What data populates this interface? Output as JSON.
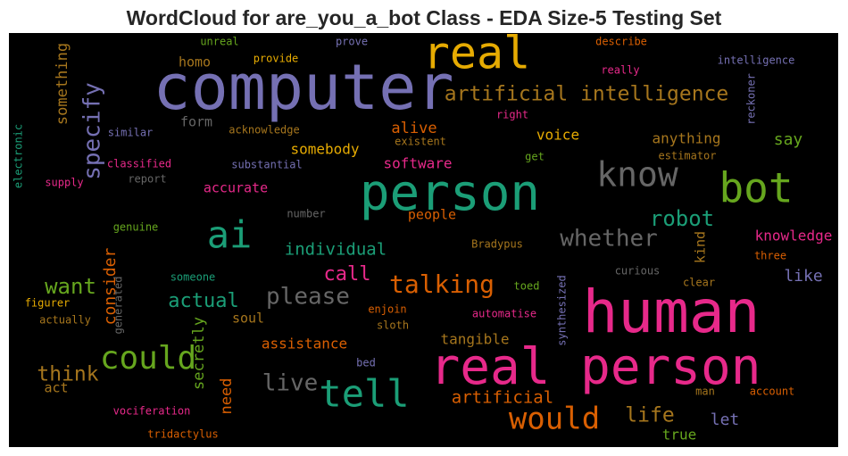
{
  "page": {
    "title": "WordCloud for are_you_a_bot Class - EDA Size-5 Testing Set"
  },
  "chart_data": {
    "type": "wordcloud",
    "title": "WordCloud for are_you_a_bot Class - EDA Size-5 Testing Set",
    "background": "#000000",
    "palette": [
      "#1b9e77",
      "#d95f02",
      "#7570b3",
      "#e7298a",
      "#66a61e",
      "#e6ab02",
      "#a6761d",
      "#666666"
    ],
    "words": [
      {
        "text": "computer",
        "weight": 1.0,
        "color": "#7570b3"
      },
      {
        "text": "human",
        "weight": 0.99,
        "color": "#e7298a"
      },
      {
        "text": "real person",
        "weight": 0.9,
        "color": "#e7298a"
      },
      {
        "text": "person",
        "weight": 0.85,
        "color": "#1b9e77"
      },
      {
        "text": "real",
        "weight": 0.78,
        "color": "#e6ab02"
      },
      {
        "text": "bot",
        "weight": 0.76,
        "color": "#66a61e"
      },
      {
        "text": "tell",
        "weight": 0.66,
        "color": "#1b9e77"
      },
      {
        "text": "ai",
        "weight": 0.63,
        "color": "#1b9e77"
      },
      {
        "text": "know",
        "weight": 0.6,
        "color": "#666666"
      },
      {
        "text": "could",
        "weight": 0.54,
        "color": "#66a61e"
      },
      {
        "text": "would",
        "weight": 0.52,
        "color": "#d95f02"
      },
      {
        "text": "talking",
        "weight": 0.44,
        "color": "#d95f02"
      },
      {
        "text": "artificial intelligence",
        "weight": 0.36,
        "color": "#a6761d"
      },
      {
        "text": "specify",
        "weight": 0.4,
        "color": "#7570b3"
      },
      {
        "text": "whether",
        "weight": 0.38,
        "color": "#666666"
      },
      {
        "text": "please",
        "weight": 0.36,
        "color": "#666666"
      },
      {
        "text": "live",
        "weight": 0.36,
        "color": "#666666"
      },
      {
        "text": "robot",
        "weight": 0.33,
        "color": "#1b9e77"
      },
      {
        "text": "want",
        "weight": 0.34,
        "color": "#66a61e"
      },
      {
        "text": "think",
        "weight": 0.32,
        "color": "#a6761d"
      },
      {
        "text": "life",
        "weight": 0.31,
        "color": "#a6761d"
      },
      {
        "text": "actual",
        "weight": 0.3,
        "color": "#1b9e77"
      },
      {
        "text": "call",
        "weight": 0.29,
        "color": "#e7298a"
      },
      {
        "text": "individual",
        "weight": 0.28,
        "color": "#1b9e77"
      },
      {
        "text": "artificial",
        "weight": 0.27,
        "color": "#d95f02"
      },
      {
        "text": "say",
        "weight": 0.26,
        "color": "#66a61e"
      },
      {
        "text": "let",
        "weight": 0.26,
        "color": "#7570b3"
      },
      {
        "text": "like",
        "weight": 0.26,
        "color": "#7570b3"
      },
      {
        "text": "consider",
        "weight": 0.26,
        "color": "#d95f02"
      },
      {
        "text": "something",
        "weight": 0.25,
        "color": "#a6761d"
      },
      {
        "text": "secretly",
        "weight": 0.26,
        "color": "#66a61e"
      },
      {
        "text": "alive",
        "weight": 0.25,
        "color": "#d95f02"
      },
      {
        "text": "need",
        "weight": 0.25,
        "color": "#d95f02"
      },
      {
        "text": "assistance",
        "weight": 0.24,
        "color": "#d95f02"
      },
      {
        "text": "tangible",
        "weight": 0.24,
        "color": "#a6761d"
      },
      {
        "text": "voice",
        "weight": 0.24,
        "color": "#e6ab02"
      },
      {
        "text": "anything",
        "weight": 0.24,
        "color": "#a6761d"
      },
      {
        "text": "knowledge",
        "weight": 0.24,
        "color": "#e7298a"
      },
      {
        "text": "true",
        "weight": 0.24,
        "color": "#66a61e"
      },
      {
        "text": "somebody",
        "weight": 0.23,
        "color": "#e6ab02"
      },
      {
        "text": "software",
        "weight": 0.23,
        "color": "#e7298a"
      },
      {
        "text": "accurate",
        "weight": 0.23,
        "color": "#e7298a"
      },
      {
        "text": "people",
        "weight": 0.23,
        "color": "#d95f02"
      },
      {
        "text": "kind",
        "weight": 0.22,
        "color": "#a6761d"
      },
      {
        "text": "soul",
        "weight": 0.22,
        "color": "#a6761d"
      },
      {
        "text": "form",
        "weight": 0.21,
        "color": "#666666"
      },
      {
        "text": "homo",
        "weight": 0.21,
        "color": "#a6761d"
      },
      {
        "text": "act",
        "weight": 0.21,
        "color": "#a6761d"
      },
      {
        "text": "unreal",
        "weight": 0.18,
        "color": "#66a61e"
      },
      {
        "text": "prove",
        "weight": 0.18,
        "color": "#7570b3"
      },
      {
        "text": "provide",
        "weight": 0.18,
        "color": "#e6ab02"
      },
      {
        "text": "describe",
        "weight": 0.18,
        "color": "#d95f02"
      },
      {
        "text": "intelligence",
        "weight": 0.18,
        "color": "#7570b3"
      },
      {
        "text": "really",
        "weight": 0.18,
        "color": "#e7298a"
      },
      {
        "text": "right",
        "weight": 0.17,
        "color": "#e7298a"
      },
      {
        "text": "reckoner",
        "weight": 0.17,
        "color": "#7570b3"
      },
      {
        "text": "electronic",
        "weight": 0.17,
        "color": "#1b9e77"
      },
      {
        "text": "similar",
        "weight": 0.17,
        "color": "#7570b3"
      },
      {
        "text": "acknowledge",
        "weight": 0.17,
        "color": "#a6761d"
      },
      {
        "text": "existent",
        "weight": 0.17,
        "color": "#a6761d"
      },
      {
        "text": "classified",
        "weight": 0.17,
        "color": "#e7298a"
      },
      {
        "text": "substantial",
        "weight": 0.17,
        "color": "#7570b3"
      },
      {
        "text": "get",
        "weight": 0.17,
        "color": "#66a61e"
      },
      {
        "text": "estimator",
        "weight": 0.17,
        "color": "#a6761d"
      },
      {
        "text": "supply",
        "weight": 0.17,
        "color": "#e7298a"
      },
      {
        "text": "report",
        "weight": 0.17,
        "color": "#666666"
      },
      {
        "text": "number",
        "weight": 0.17,
        "color": "#666666"
      },
      {
        "text": "genuine",
        "weight": 0.17,
        "color": "#66a61e"
      },
      {
        "text": "Bradypus",
        "weight": 0.17,
        "color": "#a6761d"
      },
      {
        "text": "curious",
        "weight": 0.17,
        "color": "#666666"
      },
      {
        "text": "three",
        "weight": 0.17,
        "color": "#d95f02"
      },
      {
        "text": "generated",
        "weight": 0.17,
        "color": "#666666"
      },
      {
        "text": "someone",
        "weight": 0.17,
        "color": "#1b9e77"
      },
      {
        "text": "synthesized",
        "weight": 0.17,
        "color": "#7570b3"
      },
      {
        "text": "toed",
        "weight": 0.17,
        "color": "#66a61e"
      },
      {
        "text": "clear",
        "weight": 0.17,
        "color": "#a6761d"
      },
      {
        "text": "figurer",
        "weight": 0.17,
        "color": "#e6ab02"
      },
      {
        "text": "enjoin",
        "weight": 0.17,
        "color": "#d95f02"
      },
      {
        "text": "actually",
        "weight": 0.17,
        "color": "#a6761d"
      },
      {
        "text": "automatise",
        "weight": 0.17,
        "color": "#e7298a"
      },
      {
        "text": "sloth",
        "weight": 0.17,
        "color": "#a6761d"
      },
      {
        "text": "bed",
        "weight": 0.17,
        "color": "#7570b3"
      },
      {
        "text": "man",
        "weight": 0.17,
        "color": "#a6761d"
      },
      {
        "text": "account",
        "weight": 0.17,
        "color": "#d95f02"
      },
      {
        "text": "vociferation",
        "weight": 0.17,
        "color": "#e7298a"
      },
      {
        "text": "tridactylus",
        "weight": 0.17,
        "color": "#d95f02"
      }
    ]
  }
}
